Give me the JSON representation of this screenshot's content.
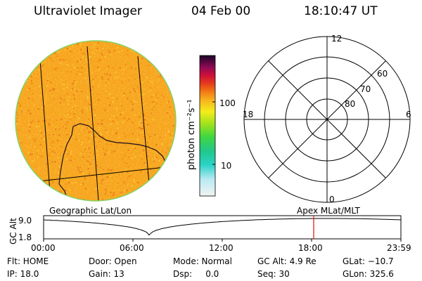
{
  "header": {
    "instrument": "Ultraviolet Imager",
    "date": "04 Feb 00",
    "time": "18:10:47 UT"
  },
  "colorbar": {
    "unit_label": "photon cm⁻²s⁻¹",
    "ticks": [
      "100",
      "10"
    ]
  },
  "polar_grid": {
    "mlt_labels": {
      "top": "12",
      "left": "18",
      "right": "6",
      "bottom": "0"
    },
    "lat_labels": [
      "60",
      "70",
      "80"
    ]
  },
  "map_labels": {
    "left": "Geographic Lat/Lon",
    "right": "Apex MLat/MLT"
  },
  "altitude_plot": {
    "ylabel": "GC Alt",
    "yticks": [
      "9.0",
      "1.8"
    ],
    "xticks": [
      "00:00",
      "06:00",
      "12:00",
      "18:00",
      "23:59"
    ],
    "current_time_marker": "18:10",
    "marker_color": "#e0201c"
  },
  "status": {
    "flt": "Flt: HOME",
    "ip": "IP: 18.0",
    "door": "Door: Open",
    "gain": "Gain: 13",
    "mode": "Mode: Normal",
    "dsp": "Dsp:     0.0",
    "gc_alt": "GC Alt: 4.9 Re",
    "seq": "Seq: 30",
    "glat": "GLat: −10.7",
    "glon": "GLon: 325.6"
  },
  "colors": {
    "image_base": "#f7a51e",
    "image_speckle_light": "#fbc83a",
    "image_speckle_dark": "#e8781a",
    "limb": "#7fd36a"
  }
}
